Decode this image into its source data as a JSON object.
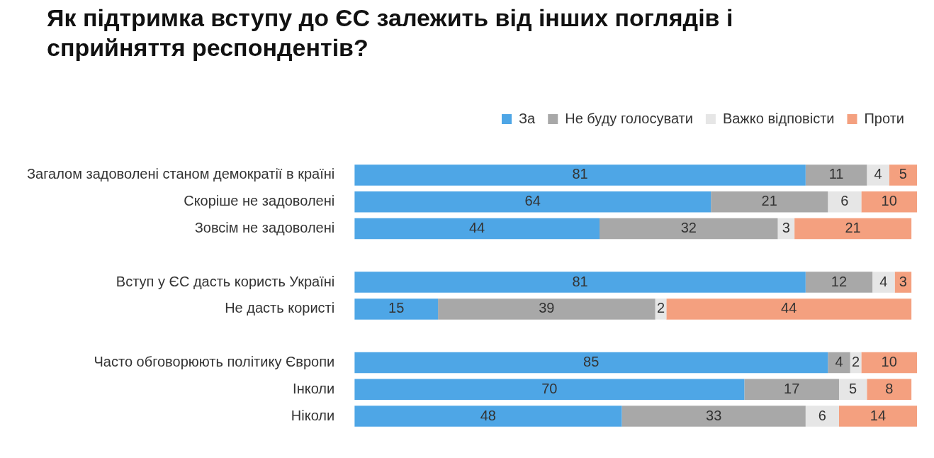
{
  "chart_data": {
    "type": "bar",
    "orientation": "horizontal",
    "stacked": true,
    "title": "Як підтримка вступу до ЄС залежить від інших поглядів і сприйняття респондентів?",
    "categories": [
      "Загалом задоволені станом демократії в країні",
      "Скоріше не задоволені",
      "Зовсім не задоволені",
      null,
      "Вступ у ЄС дасть користь Україні",
      "Не дасть користі",
      null,
      "Часто обговорюють політику Європи",
      "Інколи",
      "Ніколи"
    ],
    "series": [
      {
        "name": "За",
        "color": "#4ea6e6",
        "values": [
          81,
          64,
          44,
          null,
          81,
          15,
          null,
          85,
          70,
          48
        ]
      },
      {
        "name": "Не буду голосувати",
        "color": "#a8a8a8",
        "values": [
          11,
          21,
          32,
          null,
          12,
          39,
          null,
          4,
          17,
          33
        ]
      },
      {
        "name": "Важко відповісти",
        "color": "#e6e6e6",
        "values": [
          4,
          6,
          3,
          null,
          4,
          2,
          null,
          2,
          5,
          6
        ]
      },
      {
        "name": "Проти",
        "color": "#f4a07f",
        "values": [
          5,
          10,
          21,
          null,
          3,
          44,
          null,
          10,
          8,
          14
        ]
      }
    ],
    "data_labels": true,
    "legend": "top right",
    "grid": false,
    "tick_labels": "y"
  }
}
